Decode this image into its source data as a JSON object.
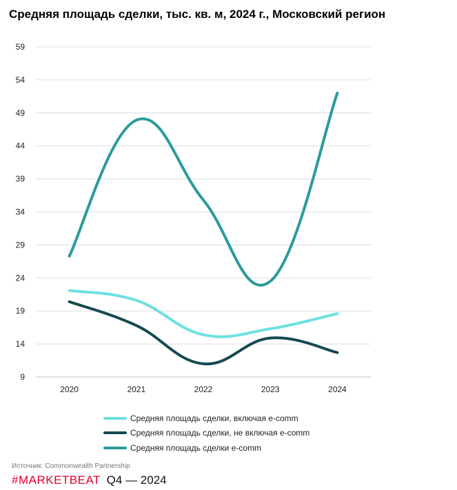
{
  "chart_data": {
    "type": "line",
    "title": "Средняя площадь сделки, тыс. кв. м, 2024 г., Московский регион",
    "x": [
      "2020",
      "2021",
      "2022",
      "2023",
      "2024"
    ],
    "y_ticks": [
      "59",
      "54",
      "49",
      "44",
      "39",
      "34",
      "29",
      "24",
      "19",
      "14",
      "9"
    ],
    "ylim": [
      9,
      59
    ],
    "grid": "horizontal",
    "smooth": true,
    "legend_position": "bottom",
    "series": [
      {
        "name": "Средняя площадь сделки, включая e-comm",
        "color": "#6de0e0",
        "values": [
          22.1,
          20.6,
          15.4,
          16.3,
          18.6
        ]
      },
      {
        "name": "Средняя площадь сделки, не включая e-comm",
        "color": "#154a4f",
        "values": [
          20.4,
          16.8,
          11.0,
          14.9,
          12.7
        ]
      },
      {
        "name": "Средняя площадь сделки e-comm",
        "color": "#2b9a9c",
        "values": [
          27.3,
          47.9,
          35.8,
          23.5,
          52.0
        ]
      }
    ]
  },
  "footer": {
    "source": "Источник: Commonwealth Partnership",
    "brand": "#MARKETBEAT",
    "period": "Q4  —  2024"
  }
}
